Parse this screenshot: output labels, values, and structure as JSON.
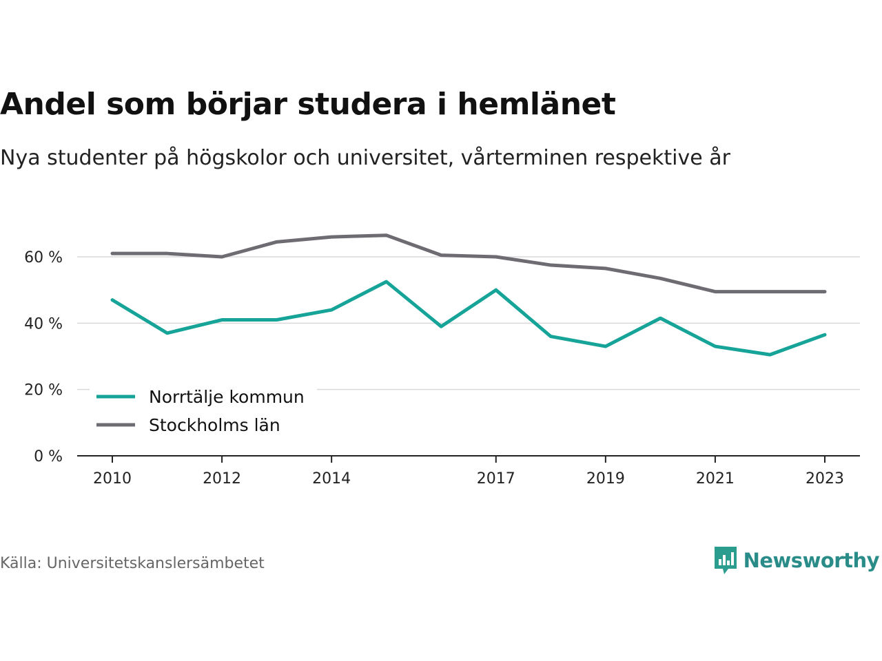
{
  "title": "Andel som börjar studera i hemlänet",
  "subtitle": "Nya studenter på högskolor och universitet, vårterminen respektive år",
  "source": "Källa: Universitetskanslersämbetet",
  "brand": {
    "name": "Newsworthy",
    "icon": "newsworthy-logo-icon",
    "color": "#2a9d8f"
  },
  "chart_data": {
    "type": "line",
    "title": "Andel som börjar studera i hemlänet",
    "subtitle": "Nya studenter på högskolor och universitet, vårterminen respektive år",
    "x": [
      2010,
      2011,
      2012,
      2013,
      2014,
      2015,
      2016,
      2017,
      2018,
      2019,
      2020,
      2021,
      2022,
      2023
    ],
    "x_ticks": [
      2010,
      2012,
      2014,
      2017,
      2019,
      2021,
      2023
    ],
    "y_ticks": [
      0,
      20,
      40,
      60
    ],
    "y_tick_labels": [
      "0 %",
      "20 %",
      "40 %",
      "60 %"
    ],
    "ylim": [
      0,
      70
    ],
    "grid": true,
    "legend_position": "bottom-left",
    "series": [
      {
        "name": "Norrtälje kommun",
        "color": "#16a398",
        "values": [
          47,
          37,
          41,
          41,
          44,
          52.5,
          39,
          50,
          36,
          33,
          41.5,
          33,
          30.5,
          36.5
        ]
      },
      {
        "name": "Stockholms län",
        "color": "#6e6c72",
        "values": [
          61,
          61,
          60,
          64.5,
          66,
          66.5,
          60.5,
          60,
          57.5,
          56.5,
          53.5,
          49.5,
          49.5,
          49.5
        ]
      }
    ]
  }
}
